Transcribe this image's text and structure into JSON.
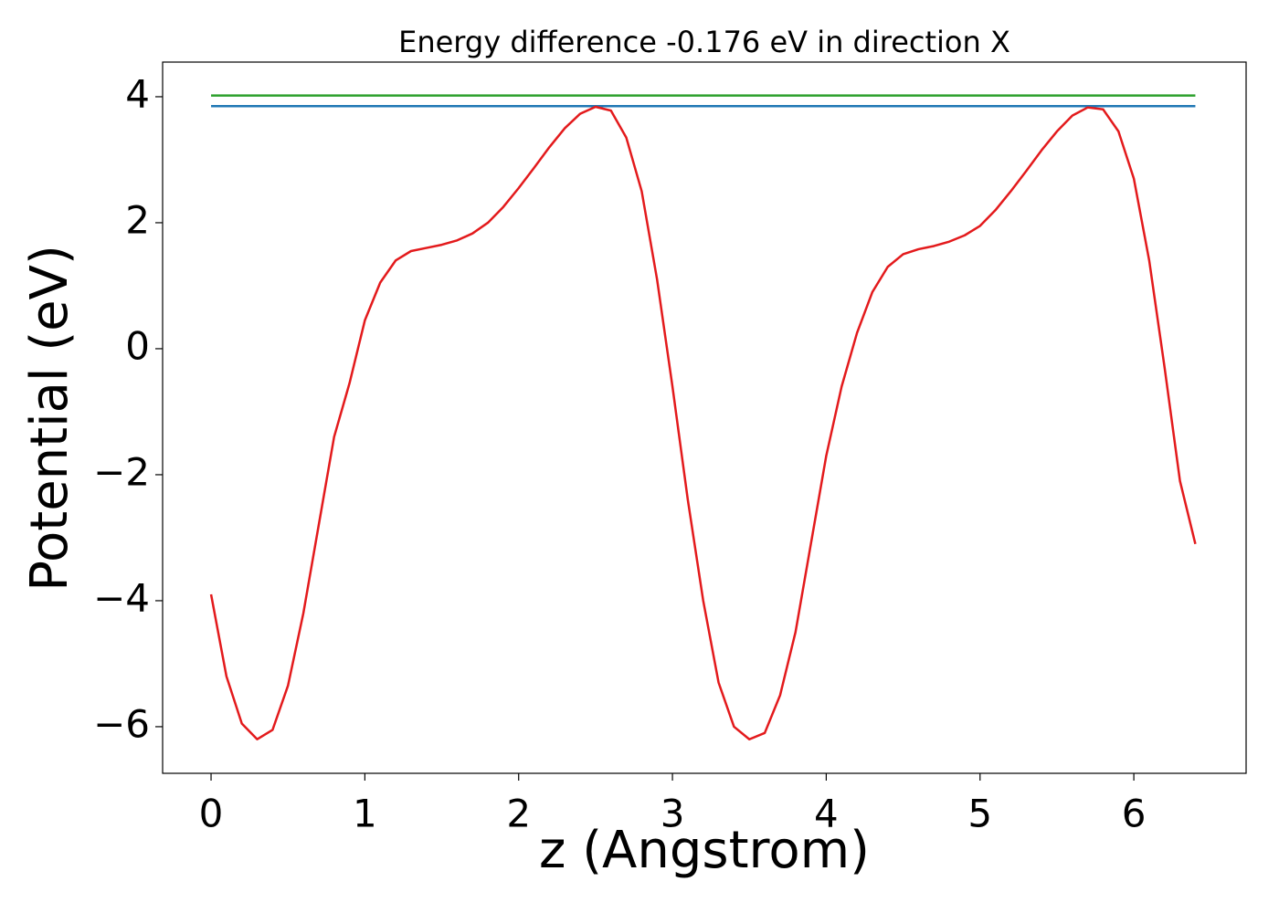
{
  "chart_data": {
    "type": "line",
    "title": "Energy difference -0.176 eV in direction X",
    "xlabel": "z (Angstrom)",
    "ylabel": "Potential (eV)",
    "xlim": [
      -0.315,
      6.73
    ],
    "ylim": [
      -6.74,
      4.55
    ],
    "xticks": [
      0,
      1,
      2,
      3,
      4,
      5,
      6
    ],
    "yticks": [
      {
        "value": -6,
        "label": "−6"
      },
      {
        "value": -4,
        "label": "−4"
      },
      {
        "value": -2,
        "label": "−2"
      },
      0,
      2,
      4
    ],
    "grid": false,
    "series": [
      {
        "color": "#2ca02c",
        "x": [
          0,
          6.4
        ],
        "values": [
          4.02,
          4.02
        ]
      },
      {
        "color": "#1f77b4",
        "x": [
          0,
          6.4
        ],
        "values": [
          3.85,
          3.85
        ]
      },
      {
        "color": "#e31a1c",
        "x": [
          0,
          0.1,
          0.2,
          0.3,
          0.4,
          0.5,
          0.6,
          0.7,
          0.8,
          0.9,
          1.0,
          1.1,
          1.2,
          1.3,
          1.4,
          1.5,
          1.6,
          1.7,
          1.8,
          1.9,
          2.0,
          2.1,
          2.2,
          2.3,
          2.4,
          2.5,
          2.6,
          2.7,
          2.8,
          2.9,
          3.0,
          3.1,
          3.2,
          3.3,
          3.4,
          3.5,
          3.6,
          3.7,
          3.8,
          3.9,
          4.0,
          4.1,
          4.2,
          4.3,
          4.4,
          4.5,
          4.6,
          4.7,
          4.8,
          4.9,
          5.0,
          5.1,
          5.2,
          5.3,
          5.4,
          5.5,
          5.6,
          5.7,
          5.8,
          5.9,
          6.0,
          6.1,
          6.2,
          6.3,
          6.4
        ],
        "values": [
          -3.9,
          -5.2,
          -5.95,
          -6.2,
          -6.05,
          -5.35,
          -4.2,
          -2.8,
          -1.4,
          -0.55,
          0.45,
          1.05,
          1.4,
          1.55,
          1.6,
          1.65,
          1.72,
          1.83,
          2.0,
          2.25,
          2.55,
          2.87,
          3.2,
          3.5,
          3.73,
          3.84,
          3.78,
          3.35,
          2.5,
          1.1,
          -0.6,
          -2.4,
          -4.0,
          -5.3,
          -6.0,
          -6.2,
          -6.1,
          -5.5,
          -4.5,
          -3.1,
          -1.7,
          -0.6,
          0.25,
          0.9,
          1.3,
          1.5,
          1.58,
          1.63,
          1.7,
          1.8,
          1.95,
          2.2,
          2.5,
          2.82,
          3.15,
          3.45,
          3.7,
          3.83,
          3.8,
          3.45,
          2.7,
          1.4,
          -0.3,
          -2.1,
          -3.1
        ]
      }
    ]
  }
}
